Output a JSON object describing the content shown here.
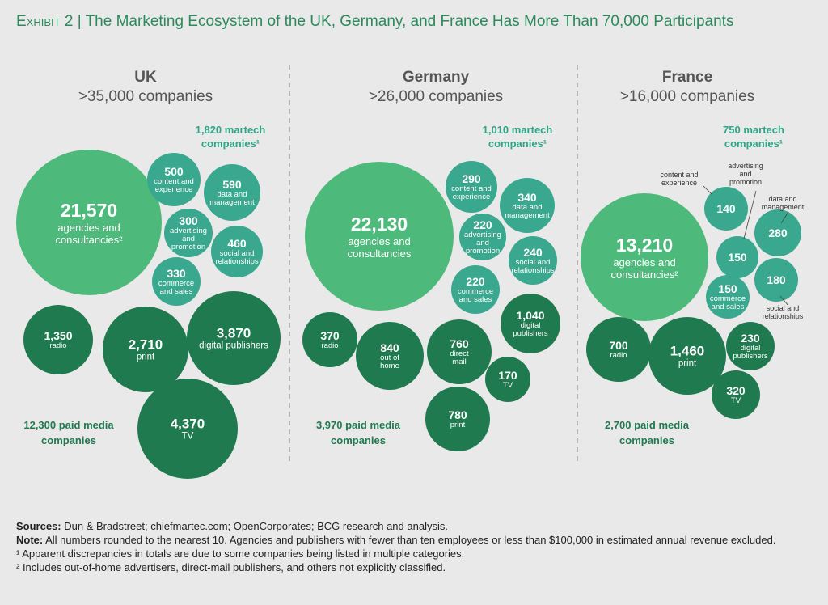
{
  "title": {
    "exhibit": "Exhibit 2",
    "separator": "|",
    "text": "The Marketing Ecosystem of the UK, Germany, and France Has More Than 70,000 Participants"
  },
  "colors": {
    "background": "#e9e9ea",
    "title": "#2b8a5c",
    "agencies": "#4dba7c",
    "martech": "#3aa88f",
    "paid_media": "#1f7a4f",
    "martech_label": "#2fa586",
    "paid_label": "#1f7a4f"
  },
  "chart_data": {
    "type": "bubble",
    "title": "The Marketing Ecosystem of the UK, Germany, and France Has More Than 70,000 Participants",
    "countries": [
      {
        "name": "UK",
        "subtitle": ">35,000 companies",
        "martech_total": [
          "1,820 martech",
          "companies¹"
        ],
        "paid_total": [
          "12,300 paid media",
          "companies"
        ],
        "bubbles": [
          {
            "group": "agencies",
            "value": "21,570",
            "label": [
              "agencies and",
              "consultancies²"
            ]
          },
          {
            "group": "martech",
            "value": "500",
            "label": [
              "content and",
              "experience"
            ]
          },
          {
            "group": "martech",
            "value": "590",
            "label": [
              "data and",
              "management"
            ]
          },
          {
            "group": "martech",
            "value": "300",
            "label": [
              "advertising",
              "and",
              "promotion"
            ]
          },
          {
            "group": "martech",
            "value": "460",
            "label": [
              "social and",
              "relationships"
            ]
          },
          {
            "group": "martech",
            "value": "330",
            "label": [
              "commerce",
              "and sales"
            ]
          },
          {
            "group": "paid",
            "value": "1,350",
            "label": [
              "radio"
            ]
          },
          {
            "group": "paid",
            "value": "2,710",
            "label": [
              "print"
            ]
          },
          {
            "group": "paid",
            "value": "3,870",
            "label": [
              "digital publishers"
            ]
          },
          {
            "group": "paid",
            "value": "4,370",
            "label": [
              "TV"
            ]
          }
        ]
      },
      {
        "name": "Germany",
        "subtitle": ">26,000 companies",
        "martech_total": [
          "1,010 martech",
          "companies¹"
        ],
        "paid_total": [
          "3,970 paid media",
          "companies"
        ],
        "bubbles": [
          {
            "group": "agencies",
            "value": "22,130",
            "label": [
              "agencies and",
              "consultancies"
            ]
          },
          {
            "group": "martech",
            "value": "290",
            "label": [
              "content and",
              "experience"
            ]
          },
          {
            "group": "martech",
            "value": "340",
            "label": [
              "data and",
              "management"
            ]
          },
          {
            "group": "martech",
            "value": "220",
            "label": [
              "advertising",
              "and",
              "promotion"
            ]
          },
          {
            "group": "martech",
            "value": "240",
            "label": [
              "social and",
              "relationships"
            ]
          },
          {
            "group": "martech",
            "value": "220",
            "label": [
              "commerce",
              "and sales"
            ]
          },
          {
            "group": "paid",
            "value": "370",
            "label": [
              "radio"
            ]
          },
          {
            "group": "paid",
            "value": "840",
            "label": [
              "out of",
              "home"
            ]
          },
          {
            "group": "paid",
            "value": "760",
            "label": [
              "direct",
              "mail"
            ]
          },
          {
            "group": "paid",
            "value": "1,040",
            "label": [
              "digital",
              "publishers"
            ]
          },
          {
            "group": "paid",
            "value": "170",
            "label": [
              "TV"
            ]
          },
          {
            "group": "paid",
            "value": "780",
            "label": [
              "print"
            ]
          }
        ]
      },
      {
        "name": "France",
        "subtitle": ">16,000 companies",
        "martech_total": [
          "750 martech",
          "companies¹"
        ],
        "paid_total": [
          "2,700 paid media",
          "companies"
        ],
        "bubbles": [
          {
            "group": "agencies",
            "value": "13,210",
            "label": [
              "agencies and",
              "consultancies²"
            ]
          },
          {
            "group": "martech",
            "value": "140",
            "label": [],
            "callout": [
              "content and",
              "experience"
            ]
          },
          {
            "group": "martech",
            "value": "150",
            "label": [],
            "callout": [
              "advertising",
              "and",
              "promotion"
            ]
          },
          {
            "group": "martech",
            "value": "280",
            "label": [],
            "callout": [
              "data and",
              "management"
            ]
          },
          {
            "group": "martech",
            "value": "180",
            "label": [],
            "callout": [
              "social and",
              "relationships"
            ]
          },
          {
            "group": "martech",
            "value": "150",
            "label": [
              "commerce",
              "and sales"
            ]
          },
          {
            "group": "paid",
            "value": "700",
            "label": [
              "radio"
            ]
          },
          {
            "group": "paid",
            "value": "1,460",
            "label": [
              "print"
            ]
          },
          {
            "group": "paid",
            "value": "230",
            "label": [
              "digital",
              "publishers"
            ]
          },
          {
            "group": "paid",
            "value": "320",
            "label": [
              "TV"
            ]
          }
        ]
      }
    ]
  },
  "notes": {
    "sources_label": "Sources:",
    "sources": " Dun & Bradstreet; chiefmartec.com; OpenCorporates; BCG research and analysis.",
    "note_label": "Note:",
    "note": " All numbers rounded to the nearest 10. Agencies and publishers with fewer than ten employees or less than $100,000 in estimated annual revenue excluded.",
    "footnote1": "¹ Apparent discrepancies in totals are due to some companies being listed in multiple categories.",
    "footnote2": "² Includes out-of-home advertisers, direct-mail publishers, and others not explicitly classified."
  }
}
